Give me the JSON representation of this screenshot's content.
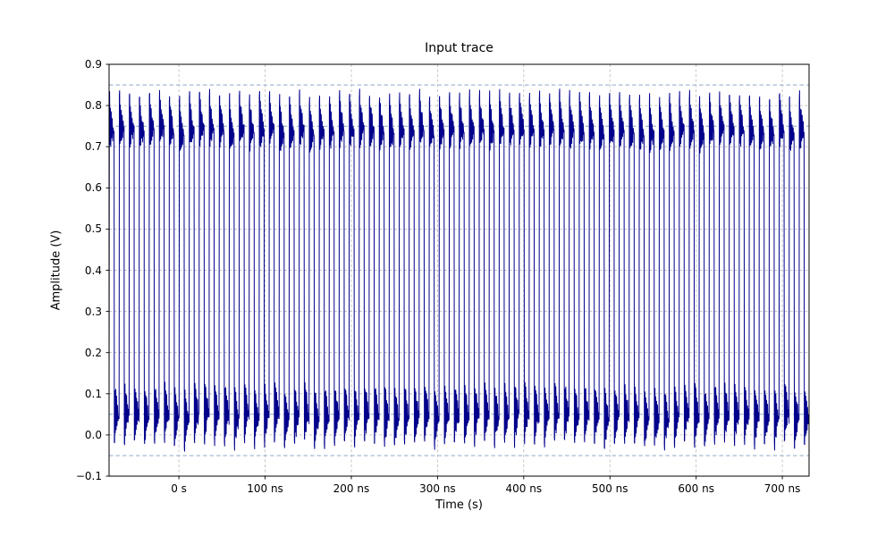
{
  "figure": {
    "background": "#ffffff"
  },
  "chart_data": {
    "type": "line",
    "title": "Input trace",
    "xlabel": "Time (s)",
    "ylabel": "Amplitude (V)",
    "x_unit": "ns",
    "xlim_ns": [
      -81,
      731
    ],
    "ylim": [
      -0.1,
      0.9
    ],
    "grid": true,
    "x_ticks": [
      {
        "ns": 0,
        "label": "0 s"
      },
      {
        "ns": 100,
        "label": "100 ns"
      },
      {
        "ns": 200,
        "label": "200 ns"
      },
      {
        "ns": 300,
        "label": "300 ns"
      },
      {
        "ns": 400,
        "label": "400 ns"
      },
      {
        "ns": 500,
        "label": "500 ns"
      },
      {
        "ns": 600,
        "label": "600 ns"
      },
      {
        "ns": 700,
        "label": "700 ns"
      }
    ],
    "y_ticks": [
      {
        "v": 0.9,
        "label": "0.9"
      },
      {
        "v": 0.8,
        "label": "0.8"
      },
      {
        "v": 0.7,
        "label": "0.7"
      },
      {
        "v": 0.6,
        "label": "0.6"
      },
      {
        "v": 0.5,
        "label": "0.5"
      },
      {
        "v": 0.4,
        "label": "0.4"
      },
      {
        "v": 0.3,
        "label": "0.3"
      },
      {
        "v": 0.2,
        "label": "0.2"
      },
      {
        "v": 0.1,
        "label": "0.1"
      },
      {
        "v": 0.0,
        "label": "0.0"
      },
      {
        "v": -0.1,
        "label": "−0.1"
      }
    ],
    "colors": {
      "trace": "#00008B",
      "grid": "#b8b8b8",
      "threshold": "#8fa8c8",
      "axis": "#000000"
    },
    "threshold_lines_v": [
      0.85,
      0.75,
      0.05,
      -0.05
    ],
    "signal": {
      "description": "Dense square wave with ringing/overshoot on each edge",
      "period_ns": 11.6,
      "duty_cycle": 0.5,
      "high_level_v": 0.74,
      "low_level_v": 0.05,
      "high_ring_max_v": 0.83,
      "high_ring_min_v": 0.7,
      "low_ring_min_v": -0.025,
      "low_ring_max_v": 0.115,
      "jitter_v": 0.018,
      "cycle_shape": [
        [
          0.0,
          0.04
        ],
        [
          0.015,
          0.55
        ],
        [
          0.03,
          0.815
        ],
        [
          0.055,
          0.83
        ],
        [
          0.09,
          0.7
        ],
        [
          0.13,
          0.8
        ],
        [
          0.17,
          0.705
        ],
        [
          0.215,
          0.785
        ],
        [
          0.26,
          0.715
        ],
        [
          0.31,
          0.77
        ],
        [
          0.36,
          0.72
        ],
        [
          0.41,
          0.755
        ],
        [
          0.46,
          0.73
        ],
        [
          0.5,
          0.74
        ],
        [
          0.515,
          0.25
        ],
        [
          0.53,
          -0.015
        ],
        [
          0.555,
          -0.025
        ],
        [
          0.59,
          0.115
        ],
        [
          0.63,
          0.0
        ],
        [
          0.67,
          0.105
        ],
        [
          0.71,
          0.005
        ],
        [
          0.755,
          0.09
        ],
        [
          0.8,
          0.02
        ],
        [
          0.85,
          0.075
        ],
        [
          0.9,
          0.03
        ],
        [
          0.95,
          0.055
        ],
        [
          1.0,
          0.045
        ]
      ]
    }
  }
}
